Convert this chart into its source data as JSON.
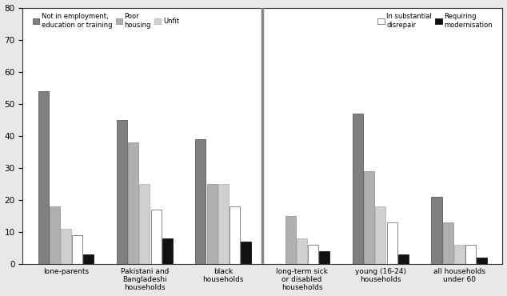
{
  "categories": [
    "lone-parents",
    "Pakistani and\nBangladeshi\nhouseholds",
    "black\nhouseholds",
    "long-term sick\nor disabled\nhouseholds",
    "young (16-24)\nhouseholds",
    "all households\nunder 60"
  ],
  "series_names": [
    "Not in employment,\neducation or training",
    "Poor\nhousing",
    "Unfit",
    "In substantial\ndisrepair",
    "Requiring\nmodernisation"
  ],
  "series_values": [
    [
      54,
      45,
      39,
      0,
      47,
      21
    ],
    [
      18,
      38,
      25,
      15,
      29,
      13
    ],
    [
      11,
      25,
      25,
      8,
      18,
      6
    ],
    [
      9,
      17,
      18,
      6,
      13,
      6
    ],
    [
      3,
      8,
      7,
      4,
      3,
      2
    ]
  ],
  "colors": [
    "#808080",
    "#b0b0b0",
    "#d0d0d0",
    "#ffffff",
    "#111111"
  ],
  "edge_colors": [
    "#444444",
    "#888888",
    "#aaaaaa",
    "#555555",
    "#000000"
  ],
  "ylim": [
    0,
    80
  ],
  "yticks": [
    0,
    10,
    20,
    30,
    40,
    50,
    60,
    70,
    80
  ],
  "background_color": "#e8e8e8",
  "plot_bg": "#ffffff",
  "group_width": 0.72,
  "bar_gap": 0.92
}
